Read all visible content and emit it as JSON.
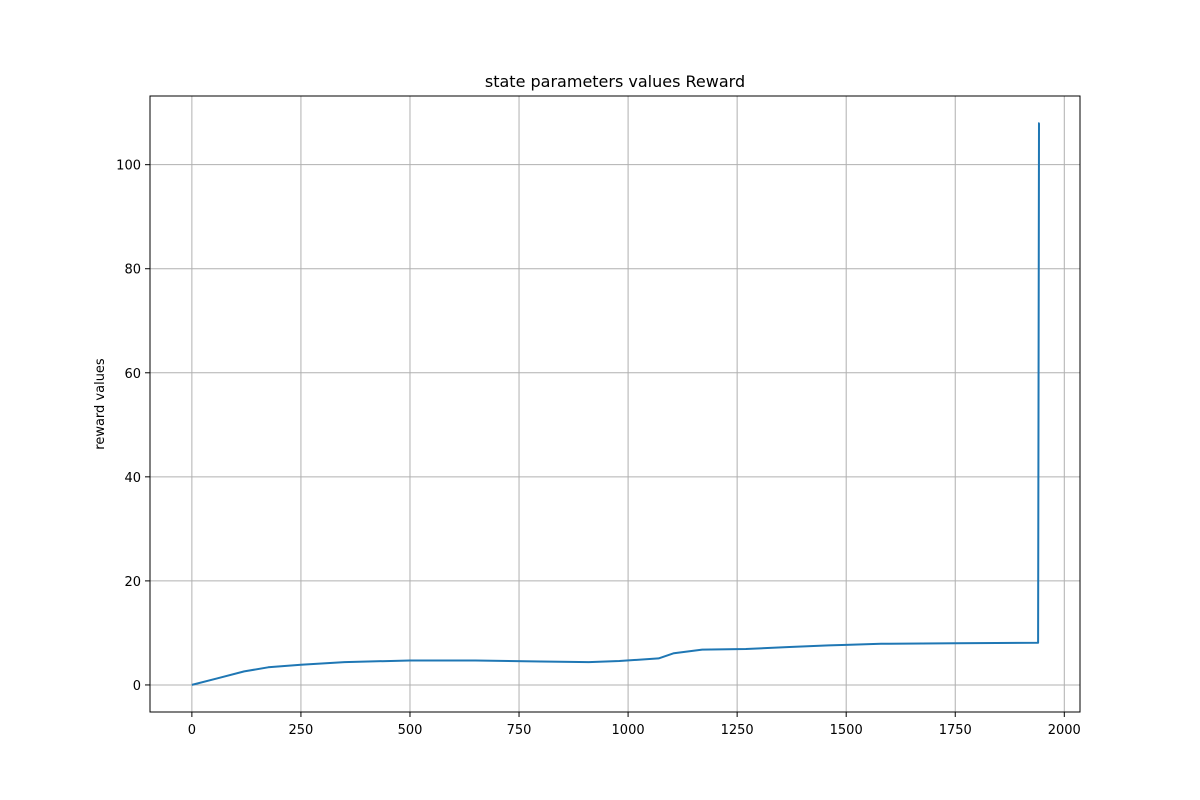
{
  "chart_data": {
    "type": "line",
    "title": "state parameters values Reward",
    "xlabel": "",
    "ylabel": "reward values",
    "xlim": [
      -96,
      2036
    ],
    "ylim": [
      -5.2,
      113.2
    ],
    "xticks": [
      0,
      250,
      500,
      750,
      1000,
      1250,
      1500,
      1750,
      2000
    ],
    "yticks": [
      0,
      20,
      40,
      60,
      80,
      100
    ],
    "grid": true,
    "line_color": "#1f77b4",
    "series": [
      {
        "x": [
          0,
          60,
          120,
          175,
          250,
          350,
          500,
          650,
          800,
          910,
          980,
          1070,
          1105,
          1170,
          1270,
          1370,
          1460,
          1500,
          1580,
          1750,
          1940,
          1942,
          1943
        ],
        "values": [
          0,
          1.3,
          2.6,
          3.4,
          3.9,
          4.4,
          4.7,
          4.7,
          4.5,
          4.4,
          4.6,
          5.1,
          6.1,
          6.8,
          6.9,
          7.3,
          7.6,
          7.7,
          7.9,
          8.0,
          8.1,
          108,
          108
        ]
      }
    ]
  }
}
